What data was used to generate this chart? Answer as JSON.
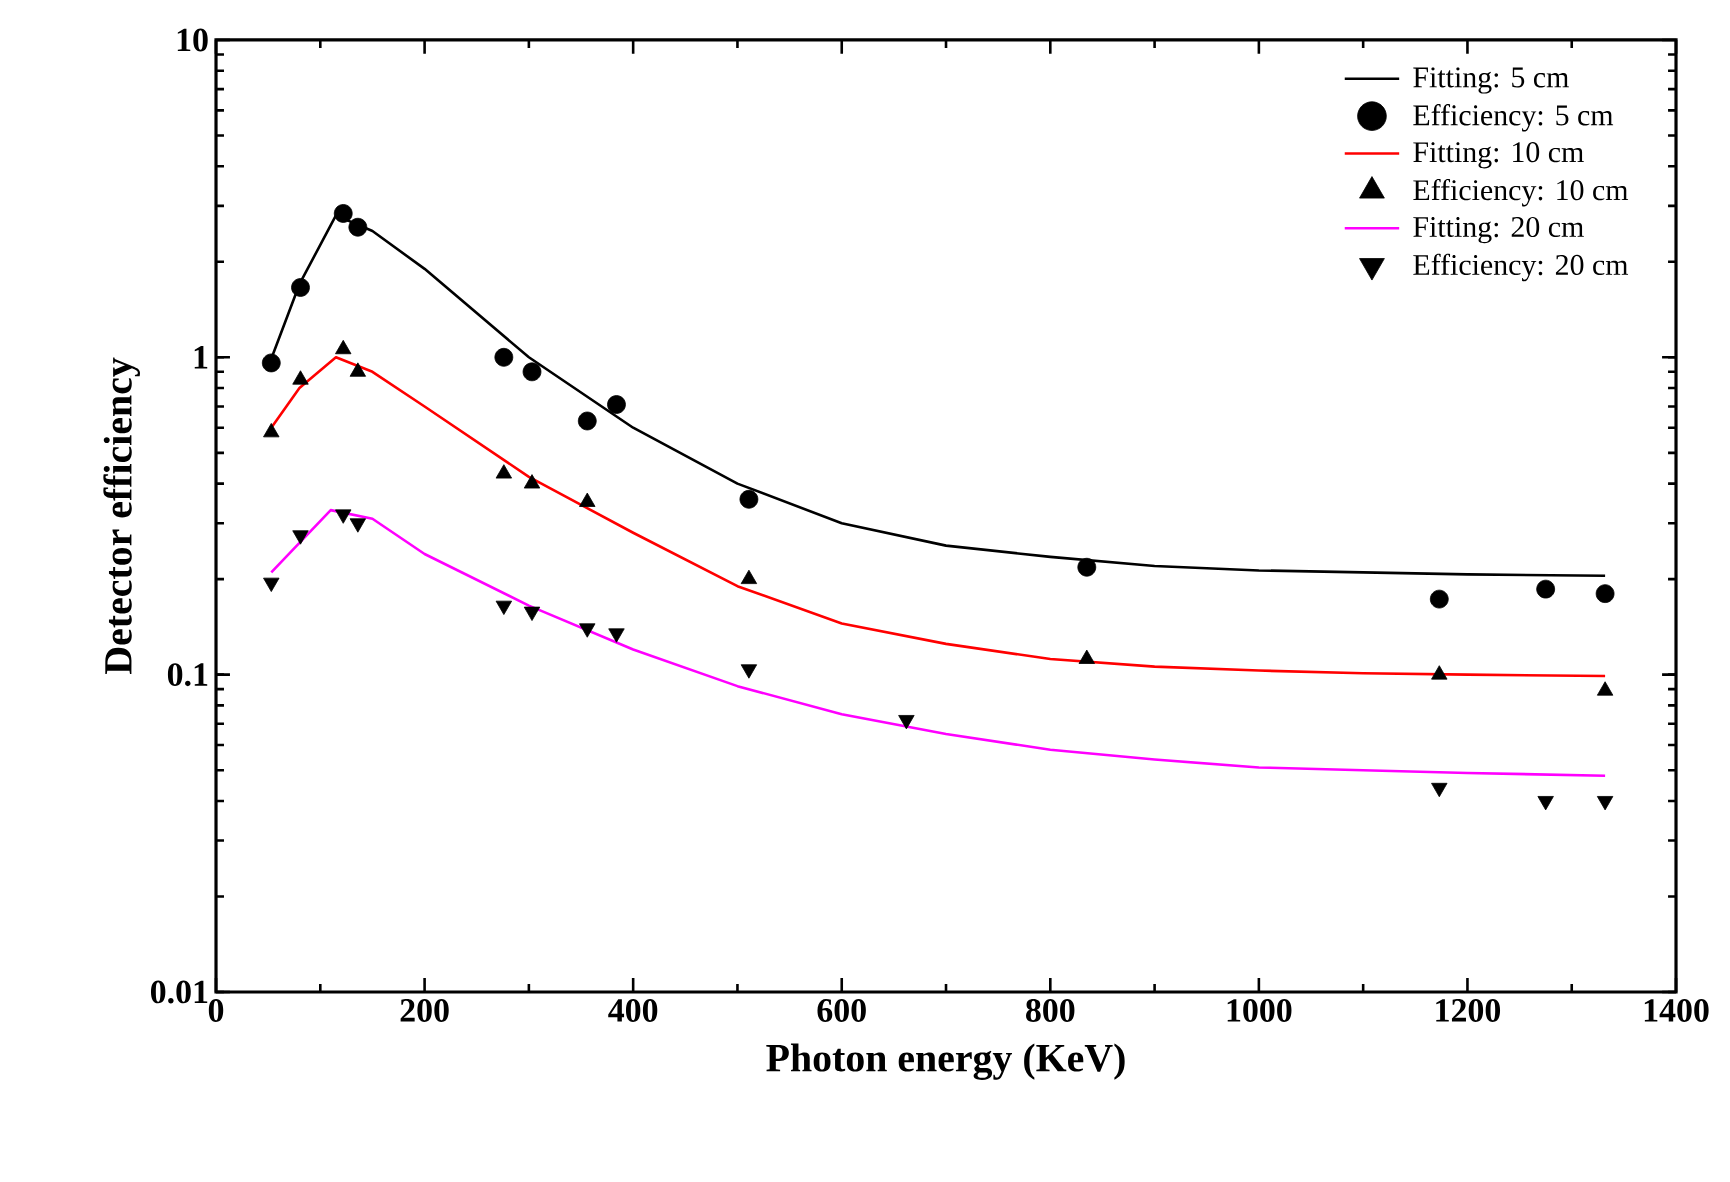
{
  "chart_data": {
    "type": "line",
    "xlabel": "Photon energy (KeV)",
    "ylabel": "Detector efficiency",
    "log": "y",
    "grid": false,
    "legend": "top right",
    "xlim": [
      0,
      1400
    ],
    "xticks": [
      0,
      200,
      400,
      600,
      800,
      1000,
      1200,
      1400
    ],
    "ylim": [
      0.01,
      10
    ],
    "yticks": [
      0.01,
      0.1,
      1,
      10
    ],
    "series": [
      {
        "name": "Fitting: 5 cm",
        "color": "#000000",
        "marker": "none",
        "line_style": "solid",
        "x": [
          53,
          80,
          115,
          150,
          200,
          300,
          400,
          500,
          600,
          700,
          800,
          900,
          1000,
          1100,
          1200,
          1332
        ],
        "values": [
          0.99,
          1.7,
          2.8,
          2.5,
          1.9,
          1.0,
          0.6,
          0.4,
          0.3,
          0.255,
          0.235,
          0.22,
          0.213,
          0.21,
          0.207,
          0.205
        ]
      },
      {
        "name": "Efficiency: 5 cm",
        "type": "scatter",
        "color": "#000000",
        "marker": "circle",
        "x": [
          53,
          81,
          122,
          136,
          276,
          303,
          356,
          384,
          511,
          835,
          1173,
          1275,
          1332
        ],
        "values": [
          0.96,
          1.66,
          2.84,
          2.57,
          1.0,
          0.9,
          0.63,
          0.71,
          0.357,
          0.218,
          0.173,
          0.186,
          0.18
        ]
      },
      {
        "name": "Fitting: 10 cm",
        "color": "#ff0000",
        "marker": "none",
        "line_style": "solid",
        "x": [
          53,
          80,
          115,
          150,
          200,
          300,
          400,
          500,
          600,
          700,
          800,
          900,
          1000,
          1100,
          1200,
          1332
        ],
        "values": [
          0.6,
          0.8,
          1.0,
          0.9,
          0.7,
          0.42,
          0.28,
          0.19,
          0.145,
          0.125,
          0.112,
          0.106,
          0.103,
          0.101,
          0.1,
          0.099
        ]
      },
      {
        "name": "Efficiency: 10 cm",
        "type": "scatter",
        "color": "#000000",
        "marker": "triangle",
        "x": [
          53,
          81,
          122,
          136,
          276,
          303,
          356,
          511,
          835,
          1173,
          1332
        ],
        "values": [
          0.58,
          0.85,
          1.06,
          0.9,
          0.43,
          0.4,
          0.35,
          0.2,
          0.112,
          0.1,
          0.089
        ]
      },
      {
        "name": "Fitting: 20 cm",
        "color": "#ff00ff",
        "marker": "none",
        "line_style": "solid",
        "x": [
          53,
          80,
          110,
          150,
          200,
          300,
          400,
          500,
          600,
          700,
          800,
          900,
          1000,
          1100,
          1200,
          1332
        ],
        "values": [
          0.21,
          0.26,
          0.33,
          0.31,
          0.24,
          0.165,
          0.12,
          0.092,
          0.075,
          0.065,
          0.058,
          0.054,
          0.051,
          0.05,
          0.049,
          0.048
        ]
      },
      {
        "name": "Efficiency: 20 cm",
        "type": "scatter",
        "color": "#000000",
        "marker": "triangle-down",
        "x": [
          53,
          81,
          122,
          136,
          276,
          303,
          356,
          384,
          511,
          662,
          1173,
          1275,
          1332
        ],
        "values": [
          0.195,
          0.275,
          0.32,
          0.3,
          0.165,
          0.158,
          0.14,
          0.135,
          0.104,
          0.072,
          0.044,
          0.04,
          0.04
        ]
      }
    ]
  }
}
